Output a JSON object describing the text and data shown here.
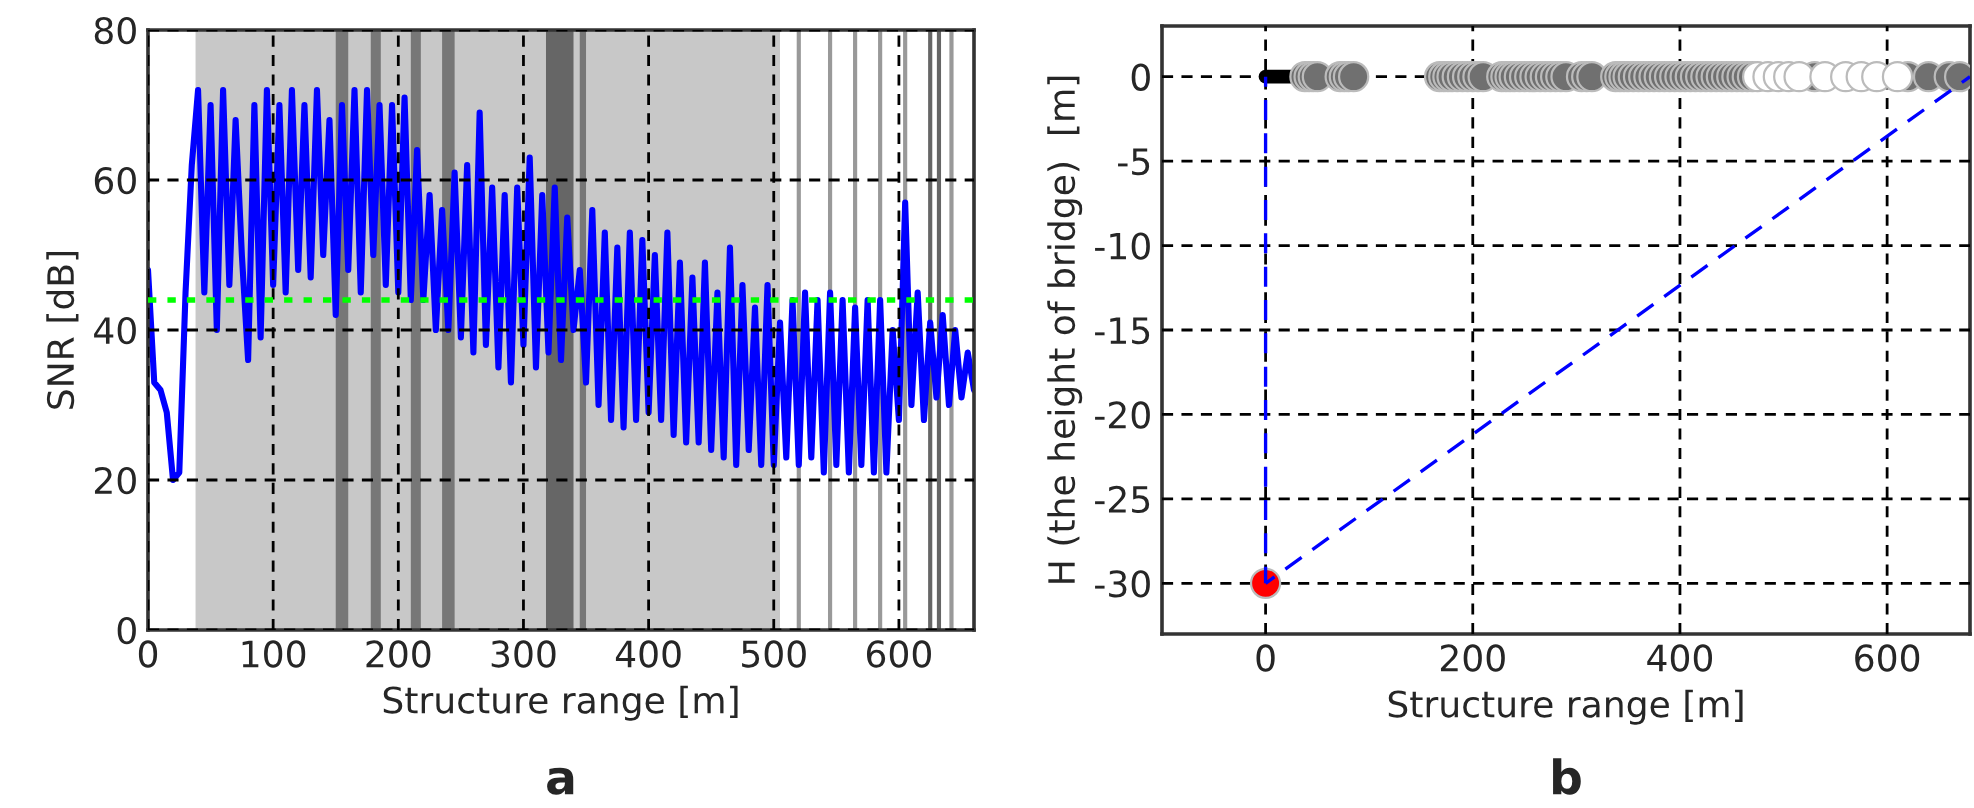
{
  "chart_data": [
    {
      "type": "line",
      "xlabel": "Structure range [m]",
      "ylabel": "SNR [dB]",
      "annotations": [
        "a"
      ],
      "xlim": [
        0,
        660
      ],
      "xticks": [
        0,
        100,
        200,
        300,
        400,
        500,
        600
      ],
      "ylim": [
        0,
        80
      ],
      "yticks": [
        0,
        20,
        40,
        60,
        80
      ],
      "grid": true,
      "legend": false,
      "series": [
        {
          "color": "#0000ff",
          "x": [
            0,
            5,
            10,
            15,
            20,
            25,
            30,
            35,
            40,
            45,
            50,
            55,
            60,
            65,
            70,
            75,
            80,
            85,
            90,
            95,
            100,
            105,
            110,
            115,
            120,
            125,
            130,
            135,
            140,
            145,
            150,
            155,
            160,
            165,
            170,
            175,
            180,
            185,
            190,
            195,
            200,
            205,
            210,
            215,
            220,
            225,
            230,
            235,
            240,
            245,
            250,
            255,
            260,
            265,
            270,
            275,
            280,
            285,
            290,
            295,
            300,
            305,
            310,
            315,
            320,
            325,
            330,
            335,
            340,
            345,
            350,
            355,
            360,
            365,
            370,
            375,
            380,
            385,
            390,
            395,
            400,
            405,
            410,
            415,
            420,
            425,
            430,
            435,
            440,
            445,
            450,
            455,
            460,
            465,
            470,
            475,
            480,
            485,
            490,
            495,
            500,
            505,
            510,
            515,
            520,
            525,
            530,
            535,
            540,
            545,
            550,
            555,
            560,
            565,
            570,
            575,
            580,
            585,
            590,
            595,
            600,
            605,
            610,
            615,
            620,
            625,
            630,
            635,
            640,
            645,
            650,
            655,
            660
          ],
          "values": [
            48,
            33,
            32,
            29,
            20,
            21,
            45,
            62,
            72,
            45,
            70,
            40,
            72,
            46,
            68,
            50,
            36,
            70,
            39,
            72,
            46,
            70,
            45,
            72,
            48,
            70,
            47,
            72,
            50,
            68,
            42,
            70,
            48,
            72,
            45,
            72,
            50,
            70,
            46,
            70,
            45,
            71,
            44,
            64,
            44,
            58,
            40,
            56,
            40,
            61,
            39,
            62,
            37,
            69,
            38,
            59,
            35,
            58,
            33,
            59,
            38,
            63,
            35,
            58,
            37,
            59,
            36,
            55,
            40,
            48,
            33,
            56,
            30,
            53,
            28,
            51,
            27,
            53,
            28,
            52,
            29,
            50,
            28,
            53,
            26,
            49,
            25,
            47,
            25,
            49,
            24,
            45,
            23,
            51,
            22,
            46,
            24,
            43,
            22,
            46,
            22,
            41,
            23,
            44,
            22,
            45,
            23,
            44,
            21,
            45,
            22,
            44,
            21,
            43,
            22,
            44,
            21,
            44,
            21,
            40,
            28,
            57,
            30,
            45,
            28,
            41,
            31,
            42,
            30,
            40,
            31,
            37,
            32
          ]
        }
      ],
      "ref_lines": [
        {
          "axis": "y",
          "value": 44,
          "color": "#00ff00",
          "line_style": "dotted"
        },
        {
          "axis": "x",
          "value": 520,
          "color": "#999999"
        },
        {
          "axis": "x",
          "value": 545,
          "color": "#999999"
        },
        {
          "axis": "x",
          "value": 565,
          "color": "#999999"
        },
        {
          "axis": "x",
          "value": 585,
          "color": "#999999"
        },
        {
          "axis": "x",
          "value": 605,
          "color": "#999999"
        },
        {
          "axis": "x",
          "value": 625,
          "color": "#666666"
        },
        {
          "axis": "x",
          "value": 632,
          "color": "#666666"
        },
        {
          "axis": "x",
          "value": 642,
          "color": "#999999"
        }
      ],
      "bands": [
        {
          "axis": "x",
          "from": 38,
          "to": 505,
          "color": "#c8c8c8"
        },
        {
          "axis": "x",
          "from": 150,
          "to": 160,
          "color": "#777777"
        },
        {
          "axis": "x",
          "from": 178,
          "to": 186,
          "color": "#777777"
        },
        {
          "axis": "x",
          "from": 210,
          "to": 218,
          "color": "#777777"
        },
        {
          "axis": "x",
          "from": 235,
          "to": 245,
          "color": "#777777"
        },
        {
          "axis": "x",
          "from": 318,
          "to": 340,
          "color": "#666666"
        },
        {
          "axis": "x",
          "from": 345,
          "to": 350,
          "color": "#777777"
        }
      ]
    },
    {
      "type": "scatter",
      "xlabel": "Structure range [m]",
      "ylabel": "H (the height of bridge)  [m]",
      "annotations": [
        "b"
      ],
      "xlim": [
        -100,
        680
      ],
      "xticks": [
        0,
        200,
        400,
        600
      ],
      "ylim": [
        -33,
        3
      ],
      "yticks": [
        -30,
        -25,
        -20,
        -15,
        -10,
        -5,
        0
      ],
      "grid": true,
      "legend": false,
      "series": [
        {
          "type": "line",
          "color": "#000000",
          "x": [
            0,
            30
          ],
          "values": [
            0,
            0
          ]
        },
        {
          "color": "#707070",
          "x": [
            38,
            42,
            46,
            50,
            72,
            76,
            80,
            85,
            168,
            172,
            176,
            180,
            185,
            190,
            195,
            200,
            205,
            210,
            228,
            232,
            236,
            240,
            245,
            250,
            255,
            260,
            265,
            270,
            275,
            280,
            285,
            290,
            305,
            310,
            315,
            338,
            342,
            346,
            350,
            355,
            360,
            365,
            370,
            375,
            380,
            385,
            390,
            395,
            400,
            405,
            410,
            415,
            420,
            425,
            430,
            435,
            440,
            445,
            450,
            455,
            460,
            465,
            470,
            530,
            620,
            640,
            660,
            670
          ],
          "values": [
            0,
            0,
            0,
            0,
            0,
            0,
            0,
            0,
            0,
            0,
            0,
            0,
            0,
            0,
            0,
            0,
            0,
            0,
            0,
            0,
            0,
            0,
            0,
            0,
            0,
            0,
            0,
            0,
            0,
            0,
            0,
            0,
            0,
            0,
            0,
            0,
            0,
            0,
            0,
            0,
            0,
            0,
            0,
            0,
            0,
            0,
            0,
            0,
            0,
            0,
            0,
            0,
            0,
            0,
            0,
            0,
            0,
            0,
            0,
            0,
            0,
            0,
            0,
            0,
            0,
            0,
            0,
            0
          ]
        },
        {
          "color": "#ffffff",
          "x": [
            475,
            485,
            495,
            505,
            515,
            540,
            560,
            575,
            590,
            610
          ],
          "values": [
            0,
            0,
            0,
            0,
            0,
            0,
            0,
            0,
            0,
            0
          ]
        },
        {
          "color": "#ff0000",
          "x": [
            0
          ],
          "values": [
            -30
          ]
        },
        {
          "type": "line",
          "color": "#0000ff",
          "line_style": "dashed",
          "x": [
            0,
            0
          ],
          "values": [
            -30,
            0
          ]
        },
        {
          "type": "line",
          "color": "#0000ff",
          "line_style": "dashed",
          "x": [
            0,
            680
          ],
          "values": [
            -30,
            0
          ]
        }
      ]
    }
  ]
}
